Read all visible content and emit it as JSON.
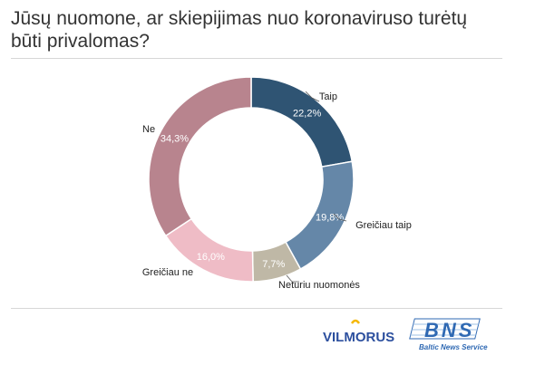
{
  "title": "Jūsų nuomone, ar skiepijimas nuo koronaviruso turėtų būti privalomas?",
  "chart_data": {
    "type": "pie",
    "donut": true,
    "title": "Jūsų nuomone, ar skiepijimas nuo koronaviruso turėtų būti privalomas?",
    "categories": [
      "Taip",
      "Greičiau taip",
      "Neturiu nuomonės",
      "Greičiau ne",
      "Ne"
    ],
    "values": [
      22.2,
      19.8,
      7.7,
      16.0,
      34.3
    ],
    "value_labels": [
      "22,2%",
      "19,8%",
      "7,7%",
      "16,0%",
      "34,3%"
    ],
    "colors": [
      "#2f5473",
      "#6587a8",
      "#bfb8a6",
      "#efbcc6",
      "#b8848e"
    ],
    "legend": "none"
  },
  "logos": {
    "vilmorus": "VILMORUS",
    "bns": "BNS",
    "bns_tagline": "Baltic News Service"
  }
}
